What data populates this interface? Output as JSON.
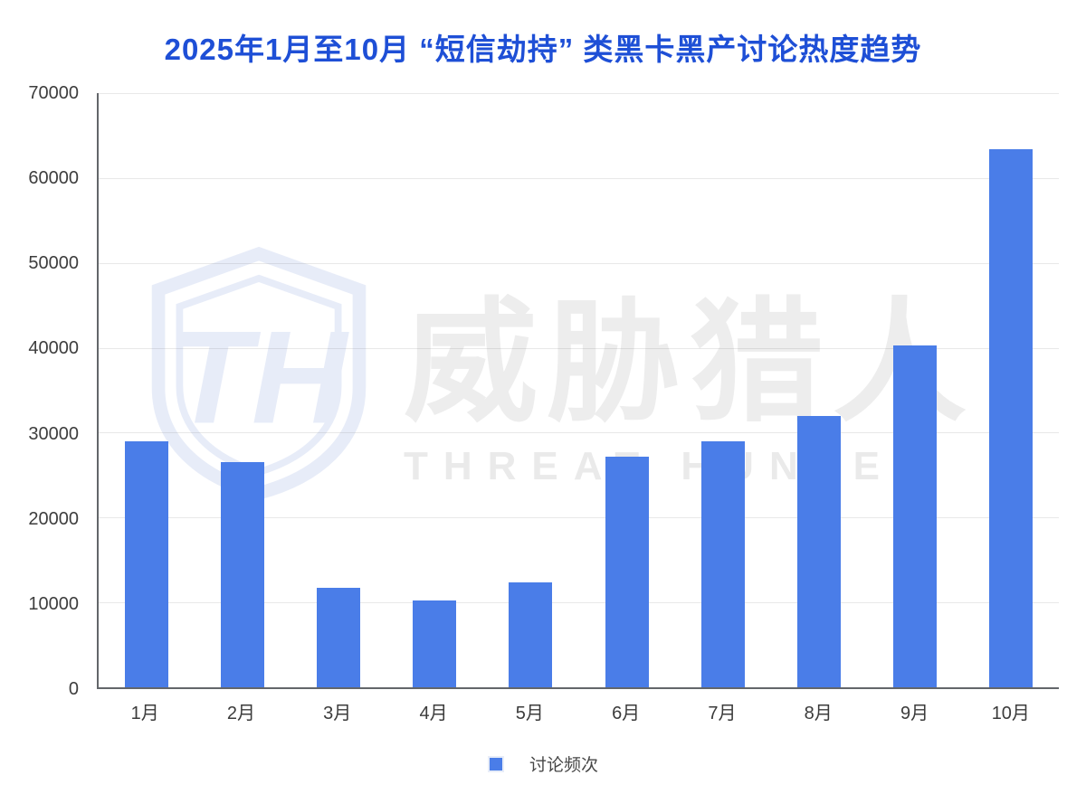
{
  "title": "2025年1月至10月 “短信劫持” 类黑卡黑产讨论热度趋势",
  "colors": {
    "title_text": "#1e4fd6",
    "bar": "#4a7de8",
    "axis_text": "#3d3d3d",
    "grid_line": "#e4e4e4",
    "axis_line": "#63666a",
    "watermark_blue": "#e7ecf8",
    "watermark_gray": "#ededed"
  },
  "watermark": {
    "monogram": "TH",
    "cn": "威胁猎人",
    "en": "THREAT HUNTER",
    "shield_icon": "shield-logo-icon"
  },
  "legend": {
    "label": "讨论频次"
  },
  "chart_data": {
    "type": "bar",
    "title": "2025年1月至10月 “短信劫持” 类黑卡黑产讨论热度趋势",
    "categories": [
      "1月",
      "2月",
      "3月",
      "4月",
      "5月",
      "6月",
      "7月",
      "8月",
      "9月",
      "10月"
    ],
    "values": [
      29000,
      26500,
      11700,
      10200,
      12400,
      27200,
      29000,
      32000,
      40300,
      63400
    ],
    "series_name": "讨论频次",
    "xlabel": "",
    "ylabel": "",
    "ylim": [
      0,
      70000
    ],
    "ytick_step": 10000,
    "yticks": [
      "0",
      "10000",
      "20000",
      "30000",
      "40000",
      "50000",
      "60000",
      "70000"
    ],
    "grid": true,
    "legend_position": "bottom",
    "bar_color": "#4a7de8"
  }
}
